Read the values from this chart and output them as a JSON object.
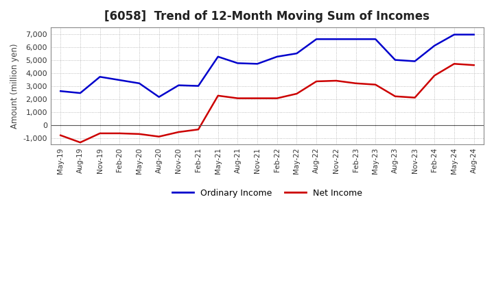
{
  "title": "[6058]  Trend of 12-Month Moving Sum of Incomes",
  "ylabel": "Amount (million yen)",
  "x_labels": [
    "May-19",
    "Aug-19",
    "Nov-19",
    "Feb-20",
    "May-20",
    "Aug-20",
    "Nov-20",
    "Feb-21",
    "May-21",
    "Aug-21",
    "Nov-21",
    "Feb-22",
    "May-22",
    "Aug-22",
    "Nov-22",
    "Feb-23",
    "May-23",
    "Aug-23",
    "Nov-23",
    "Feb-24",
    "May-24",
    "Aug-24"
  ],
  "ordinary_income": [
    2600,
    2450,
    3700,
    3450,
    3200,
    2150,
    3050,
    3000,
    5250,
    4750,
    4700,
    5250,
    5500,
    6600,
    6600,
    6600,
    6600,
    5000,
    4900,
    6100,
    6950,
    6950
  ],
  "net_income": [
    -800,
    -1350,
    -650,
    -650,
    -700,
    -900,
    -550,
    -350,
    2250,
    2050,
    2050,
    2050,
    2400,
    3350,
    3400,
    3200,
    3100,
    2200,
    2100,
    3800,
    4700,
    4600
  ],
  "ordinary_color": "#0000cc",
  "net_color": "#cc0000",
  "ylim": [
    -1500,
    7500
  ],
  "yticks": [
    -1000,
    0,
    1000,
    2000,
    3000,
    4000,
    5000,
    6000,
    7000
  ],
  "title_fontsize": 12,
  "legend_labels": [
    "Ordinary Income",
    "Net Income"
  ],
  "background_color": "#ffffff",
  "grid_color": "#aaaaaa"
}
